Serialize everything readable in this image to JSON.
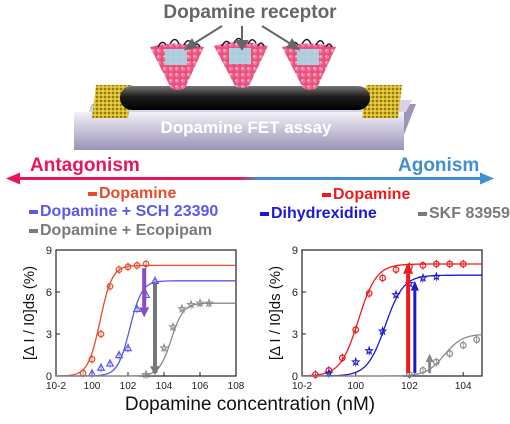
{
  "header": {
    "title": "Dopamine receptor"
  },
  "device": {
    "label": "Dopamine FET assay"
  },
  "axis_labels": {
    "antagonism": "Antagonism",
    "agonism": "Agonism"
  },
  "legend_left": [
    {
      "label": "Dopamine",
      "color": "#e84a2a"
    },
    {
      "label": "Dopamine + SCH 23390",
      "color": "#5a5ae6"
    },
    {
      "label": "Dopamine + Ecopipam",
      "color": "#7a7a7a"
    }
  ],
  "legend_right": [
    {
      "label": "Dopamine",
      "color": "#ef1a1a"
    },
    {
      "label": "Dihydrexidine",
      "color": "#1a1ad6"
    },
    {
      "label": "SKF 83959",
      "color": "#7a7a7a"
    }
  ],
  "xlabel": "Dopamine concentration (nM)",
  "chart_data": [
    {
      "type": "line",
      "ylabel": "[Δ I / I0]ds (%)",
      "ylim": [
        0,
        9
      ],
      "xlim_log10": [
        -2,
        8
      ],
      "x_tick_labels": [
        "10-2",
        "100",
        "102",
        "104",
        "106",
        "108"
      ],
      "y_tick_labels": [
        "0",
        "3",
        "6",
        "9"
      ],
      "series": [
        {
          "name": "Dopamine",
          "color": "#e84a2a",
          "marker": "circle",
          "log10_x": [
            -0.5,
            0,
            0.5,
            1,
            1.5,
            2,
            2.5,
            3
          ],
          "y": [
            0.2,
            1.2,
            3.0,
            6.4,
            7.6,
            7.8,
            7.9,
            8.0
          ],
          "fit_ec50_log10": 0.45,
          "fit_top": 7.9
        },
        {
          "name": "Dopamine + SCH 23390",
          "color": "#5a5ae6",
          "marker": "triangle",
          "log10_x": [
            0,
            0.5,
            1,
            1.5,
            2,
            2.5,
            3,
            3.5
          ],
          "y": [
            0.2,
            0.6,
            0.9,
            1.5,
            2.0,
            4.8,
            5.8,
            6.8
          ],
          "fit_ec50_log10": 2.1,
          "fit_top": 6.8
        },
        {
          "name": "Dopamine + Ecopipam",
          "color": "#8a8a8a",
          "marker": "star",
          "log10_x": [
            3,
            3.5,
            4,
            4.5,
            5,
            5.5,
            6,
            6.5
          ],
          "y": [
            0.1,
            0.5,
            2.0,
            3.5,
            4.8,
            5.1,
            5.2,
            5.2
          ],
          "fit_ec50_log10": 4.4,
          "fit_top": 5.2
        }
      ]
    },
    {
      "type": "line",
      "ylabel": "[Δ I / I0]ds (%)",
      "ylim": [
        0,
        9
      ],
      "xlim_log10": [
        -2,
        4.7
      ],
      "x_tick_labels": [
        "10-2",
        "100",
        "102",
        "104"
      ],
      "y_tick_labels": [
        "0",
        "3",
        "6",
        "9"
      ],
      "series": [
        {
          "name": "Dopamine",
          "color": "#ef1a1a",
          "marker": "circle",
          "log10_x": [
            -1.5,
            -1,
            -0.5,
            0,
            0.5,
            1,
            1.5,
            2,
            2.5,
            3,
            3.5,
            4
          ],
          "y": [
            0.1,
            0.4,
            1.3,
            3.3,
            5.9,
            7.0,
            7.6,
            7.8,
            7.9,
            8.0,
            8.0,
            8.0
          ],
          "fit_ec50_log10": 0.1,
          "fit_top": 8.0
        },
        {
          "name": "Dihydrexidine",
          "color": "#1a1ad6",
          "marker": "star",
          "log10_x": [
            -1,
            0,
            0.5,
            1,
            1.5,
            2,
            2.5,
            3
          ],
          "y": [
            0.2,
            1.0,
            1.8,
            3.2,
            5.8,
            6.6,
            7.0,
            7.1
          ],
          "fit_ec50_log10": 1.1,
          "fit_top": 7.2
        },
        {
          "name": "SKF 83959",
          "color": "#8a8a8a",
          "marker": "circle",
          "log10_x": [
            2,
            2.5,
            3,
            3.5,
            4,
            4.5
          ],
          "y": [
            0.1,
            0.4,
            1.0,
            1.6,
            2.2,
            2.6
          ],
          "fit_ec50_log10": 3.3,
          "fit_top": 3.0
        }
      ]
    }
  ]
}
